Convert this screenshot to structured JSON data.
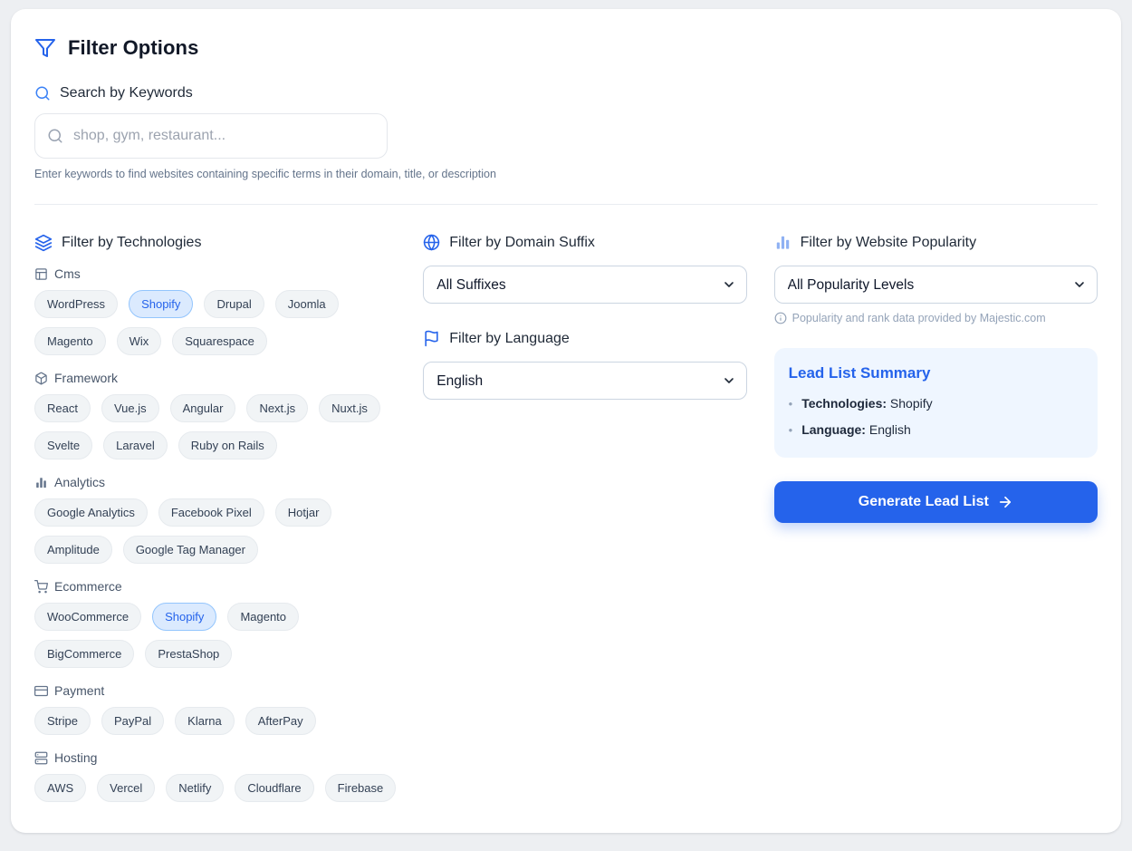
{
  "page": {
    "title": "Filter Options"
  },
  "search": {
    "heading": "Search by Keywords",
    "placeholder": "shop, gym, restaurant...",
    "helper": "Enter keywords to find websites containing specific terms in their domain, title, or description"
  },
  "technologies": {
    "heading": "Filter by Technologies",
    "categories": [
      {
        "name": "Cms",
        "icon": "layout-icon",
        "rows": [
          [
            {
              "label": "WordPress",
              "selected": false
            },
            {
              "label": "Shopify",
              "selected": true
            },
            {
              "label": "Drupal",
              "selected": false
            },
            {
              "label": "Joomla",
              "selected": false
            }
          ],
          [
            {
              "label": "Magento",
              "selected": false
            },
            {
              "label": "Wix",
              "selected": false
            },
            {
              "label": "Squarespace",
              "selected": false
            }
          ]
        ]
      },
      {
        "name": "Framework",
        "icon": "box-icon",
        "rows": [
          [
            {
              "label": "React",
              "selected": false
            },
            {
              "label": "Vue.js",
              "selected": false
            },
            {
              "label": "Angular",
              "selected": false
            },
            {
              "label": "Next.js",
              "selected": false
            },
            {
              "label": "Nuxt.js",
              "selected": false
            }
          ],
          [
            {
              "label": "Svelte",
              "selected": false
            },
            {
              "label": "Laravel",
              "selected": false
            },
            {
              "label": "Ruby on Rails",
              "selected": false
            }
          ]
        ]
      },
      {
        "name": "Analytics",
        "icon": "bar-chart-icon",
        "rows": [
          [
            {
              "label": "Google Analytics",
              "selected": false
            },
            {
              "label": "Facebook Pixel",
              "selected": false
            },
            {
              "label": "Hotjar",
              "selected": false
            }
          ],
          [
            {
              "label": "Amplitude",
              "selected": false
            },
            {
              "label": "Google Tag Manager",
              "selected": false
            }
          ]
        ]
      },
      {
        "name": "Ecommerce",
        "icon": "cart-icon",
        "rows": [
          [
            {
              "label": "WooCommerce",
              "selected": false
            },
            {
              "label": "Shopify",
              "selected": true
            },
            {
              "label": "Magento",
              "selected": false
            }
          ],
          [
            {
              "label": "BigCommerce",
              "selected": false
            },
            {
              "label": "PrestaShop",
              "selected": false
            }
          ]
        ]
      },
      {
        "name": "Payment",
        "icon": "credit-card-icon",
        "rows": [
          [
            {
              "label": "Stripe",
              "selected": false
            },
            {
              "label": "PayPal",
              "selected": false
            },
            {
              "label": "Klarna",
              "selected": false
            },
            {
              "label": "AfterPay",
              "selected": false
            }
          ]
        ]
      },
      {
        "name": "Hosting",
        "icon": "server-icon",
        "rows": [
          [
            {
              "label": "AWS",
              "selected": false
            },
            {
              "label": "Vercel",
              "selected": false
            },
            {
              "label": "Netlify",
              "selected": false
            },
            {
              "label": "Cloudflare",
              "selected": false
            },
            {
              "label": "Firebase",
              "selected": false
            }
          ]
        ]
      }
    ]
  },
  "domain_suffix": {
    "heading": "Filter by Domain Suffix",
    "value": "All Suffixes"
  },
  "language": {
    "heading": "Filter by Language",
    "value": "English"
  },
  "popularity": {
    "heading": "Filter by Website Popularity",
    "value": "All Popularity Levels",
    "note": "Popularity and rank data provided by Majestic.com"
  },
  "summary": {
    "title": "Lead List Summary",
    "items": [
      {
        "label": "Technologies:",
        "value": "Shopify"
      },
      {
        "label": "Language:",
        "value": "English"
      }
    ]
  },
  "generate": {
    "label": "Generate Lead List"
  },
  "colors": {
    "accent": "#2563eb",
    "chip_bg": "#f1f4f6",
    "chip_selected_bg": "#dbeafe",
    "chip_selected_border": "#93c5fd",
    "summary_bg": "#eff6ff",
    "page_bg": "#edeff2"
  }
}
